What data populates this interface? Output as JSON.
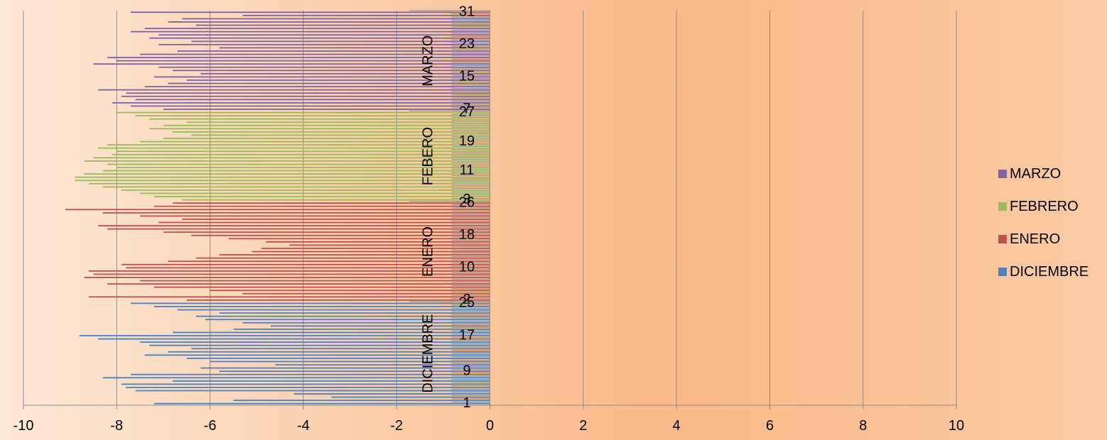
{
  "chart_data": {
    "type": "bar",
    "orientation": "horizontal",
    "xlim": [
      -10,
      10
    ],
    "x_ticks": [
      "-10",
      "-8",
      "-6",
      "-4",
      "-2",
      "0",
      "2",
      "4",
      "6",
      "8",
      "10"
    ],
    "grid": "vertical",
    "legend_position": "right",
    "groups": [
      {
        "name": "DICIEMBRE",
        "color": "#4f81bd",
        "day_labels": [
          "1",
          "9",
          "17",
          "25"
        ]
      },
      {
        "name": "ENERO",
        "color": "#c0504d",
        "day_labels": [
          "2",
          "10",
          "18",
          "26"
        ]
      },
      {
        "name": "FEBERO",
        "color": "#9bbb59",
        "day_labels": [
          "3",
          "11",
          "19",
          "27"
        ]
      },
      {
        "name": "MARZO",
        "color": "#8064a2",
        "day_labels": [
          "7",
          "15",
          "23",
          "31"
        ]
      }
    ],
    "series": [
      {
        "name": "DICIEMBRE",
        "color": "#4f81bd",
        "values": [
          -7.2,
          -5.5,
          -3.4,
          -4.2,
          -7.6,
          -7.8,
          -7.9,
          -6.8,
          -8.3,
          -7.7,
          -5.8,
          -6.2,
          -4.6,
          -6.0,
          -6.5,
          -7.4,
          -6.9,
          -6.4,
          -7.3,
          -7.5,
          -8.4,
          -8.8,
          -6.8,
          -5.5,
          -4.7,
          -5.3,
          -6.1,
          -6.3,
          -5.8,
          -6.7,
          -7.2,
          -7.7
        ]
      },
      {
        "name": "ENERO",
        "color": "#c0504d",
        "values": [
          -6.5,
          -8.6,
          -5.3,
          -6.0,
          -7.2,
          -8.2,
          -7.5,
          -8.7,
          -8.5,
          -8.6,
          -7.8,
          -7.9,
          -6.9,
          -6.3,
          -5.8,
          -5.1,
          -4.9,
          -4.3,
          -4.8,
          -5.6,
          -6.4,
          -7.0,
          -8.2,
          -8.4,
          -7.1,
          -6.6,
          -7.5,
          -8.3,
          -9.1,
          -7.2,
          -6.8
        ]
      },
      {
        "name": "FEBERO",
        "color": "#9bbb59",
        "values": [
          -6.6,
          -7.2,
          -7.5,
          -7.9,
          -8.3,
          -8.6,
          -8.9,
          -8.9,
          -8.7,
          -8.3,
          -8.0,
          -8.2,
          -8.7,
          -8.5,
          -8.1,
          -8.0,
          -8.4,
          -8.2,
          -7.5,
          -7.0,
          -6.4,
          -6.8,
          -7.3,
          -7.0,
          -6.5,
          -7.3,
          -7.6,
          -8.0
        ]
      },
      {
        "name": "MARZO",
        "color": "#8064a2",
        "values": [
          -7.0,
          -7.7,
          -8.1,
          -7.6,
          -7.9,
          -7.8,
          -8.4,
          -7.4,
          -6.9,
          -6.5,
          -7.2,
          -6.2,
          -6.8,
          -7.1,
          -8.5,
          -8.0,
          -8.2,
          -7.5,
          -6.7,
          -5.8,
          -7.1,
          -6.4,
          -7.3,
          -7.1,
          -7.7,
          -7.4,
          -6.3,
          -6.9,
          -6.6,
          -5.3,
          -7.7
        ]
      }
    ]
  },
  "legend": {
    "items": [
      {
        "label": "MARZO",
        "color": "#8064a2"
      },
      {
        "label": "FEBRERO",
        "color": "#9bbb59"
      },
      {
        "label": "ENERO",
        "color": "#c0504d"
      },
      {
        "label": "DICIEMBRE",
        "color": "#4f81bd"
      }
    ]
  }
}
